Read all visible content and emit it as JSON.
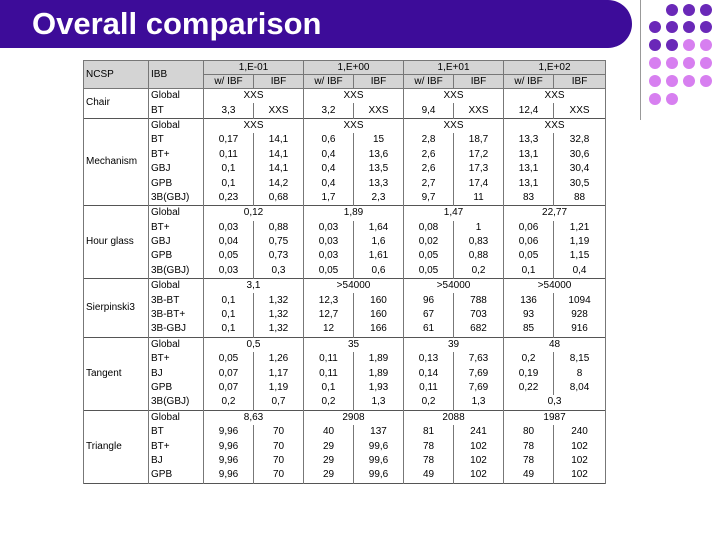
{
  "title": "Overall comparison",
  "table": {
    "ncsp_label": "NCSP",
    "ibb_label": "IBB",
    "groups": [
      "1,E-01",
      "1,E+00",
      "1,E+01",
      "1,E+02"
    ],
    "subheaders": [
      "w/ IBF",
      "IBF",
      "w/ IBF",
      "IBF",
      "w/ IBF",
      "IBF",
      "w/ IBF",
      "IBF"
    ],
    "sections": [
      {
        "name": "Chair",
        "rows": [
          {
            "ibb": "Global",
            "cells": [
              [
                "XXS"
              ],
              [
                "XXS"
              ],
              [
                "XXS"
              ],
              [
                "XXS"
              ]
            ]
          },
          {
            "ibb": "BT",
            "cells": [
              [
                "3,3",
                "XXS"
              ],
              [
                "3,2",
                "XXS"
              ],
              [
                "9,4",
                "XXS"
              ],
              [
                "12,4",
                "XXS"
              ]
            ]
          }
        ]
      },
      {
        "name": "Mechanism",
        "rows": [
          {
            "ibb": "Global",
            "cells": [
              [
                "XXS"
              ],
              [
                "XXS"
              ],
              [
                "XXS"
              ],
              [
                "XXS"
              ]
            ]
          },
          {
            "ibb": "BT",
            "cells": [
              [
                "0,17",
                "14,1"
              ],
              [
                "0,6",
                "15"
              ],
              [
                "2,8",
                "18,7"
              ],
              [
                "13,3",
                "32,8"
              ]
            ]
          },
          {
            "ibb": "BT+",
            "cells": [
              [
                "0,11",
                "14,1"
              ],
              [
                "0,4",
                "13,6"
              ],
              [
                "2,6",
                "17,2"
              ],
              [
                "13,1",
                "30,6"
              ]
            ]
          },
          {
            "ibb": "GBJ",
            "cells": [
              [
                "0,1",
                "14,1"
              ],
              [
                "0,4",
                "13,5"
              ],
              [
                "2,6",
                "17,3"
              ],
              [
                "13,1",
                "30,4"
              ]
            ]
          },
          {
            "ibb": "GPB",
            "cells": [
              [
                "0,1",
                "14,2"
              ],
              [
                "0,4",
                "13,3"
              ],
              [
                "2,7",
                "17,4"
              ],
              [
                "13,1",
                "30,5"
              ]
            ]
          },
          {
            "ibb": "3B(GBJ)",
            "cells": [
              [
                "0,23",
                "0,68"
              ],
              [
                "1,7",
                "2,3"
              ],
              [
                "9,7",
                "11"
              ],
              [
                "83",
                "88"
              ]
            ]
          }
        ]
      },
      {
        "name": "Hour glass",
        "rows": [
          {
            "ibb": "Global",
            "cells": [
              [
                "0,12"
              ],
              [
                "1,89"
              ],
              [
                "1,47"
              ],
              [
                "22,77"
              ]
            ]
          },
          {
            "ibb": "BT+",
            "cells": [
              [
                "0,03",
                "0,88"
              ],
              [
                "0,03",
                "1,64"
              ],
              [
                "0,08",
                "1"
              ],
              [
                "0,06",
                "1,21"
              ]
            ]
          },
          {
            "ibb": "GBJ",
            "cells": [
              [
                "0,04",
                "0,75"
              ],
              [
                "0,03",
                "1,6"
              ],
              [
                "0,02",
                "0,83"
              ],
              [
                "0,06",
                "1,19"
              ]
            ]
          },
          {
            "ibb": "GPB",
            "cells": [
              [
                "0,05",
                "0,73"
              ],
              [
                "0,03",
                "1,61"
              ],
              [
                "0,05",
                "0,88"
              ],
              [
                "0,05",
                "1,15"
              ]
            ]
          },
          {
            "ibb": "3B(GBJ)",
            "cells": [
              [
                "0,03",
                "0,3"
              ],
              [
                "0,05",
                "0,6"
              ],
              [
                "0,05",
                "0,2"
              ],
              [
                "0,1",
                "0,4"
              ]
            ]
          }
        ]
      },
      {
        "name": "Sierpinski3",
        "rows": [
          {
            "ibb": "Global",
            "cells": [
              [
                "3,1"
              ],
              [
                ">54000"
              ],
              [
                ">54000"
              ],
              [
                ">54000"
              ]
            ]
          },
          {
            "ibb": "3B-BT",
            "cells": [
              [
                "0,1",
                "1,32"
              ],
              [
                "12,3",
                "160"
              ],
              [
                "96",
                "788"
              ],
              [
                "136",
                "1094"
              ]
            ]
          },
          {
            "ibb": "3B-BT+",
            "cells": [
              [
                "0,1",
                "1,32"
              ],
              [
                "12,7",
                "160"
              ],
              [
                "67",
                "703"
              ],
              [
                "93",
                "928"
              ]
            ]
          },
          {
            "ibb": "3B-GBJ",
            "cells": [
              [
                "0,1",
                "1,32"
              ],
              [
                "12",
                "166"
              ],
              [
                "61",
                "682"
              ],
              [
                "85",
                "916"
              ]
            ]
          }
        ]
      },
      {
        "name": "Tangent",
        "rows": [
          {
            "ibb": "Global",
            "cells": [
              [
                "0,5"
              ],
              [
                "35"
              ],
              [
                "39"
              ],
              [
                "48"
              ]
            ]
          },
          {
            "ibb": "BT+",
            "cells": [
              [
                "0,05",
                "1,26"
              ],
              [
                "0,11",
                "1,89"
              ],
              [
                "0,13",
                "7,63"
              ],
              [
                "0,2",
                "8,15"
              ]
            ]
          },
          {
            "ibb": "BJ",
            "cells": [
              [
                "0,07",
                "1,17"
              ],
              [
                "0,11",
                "1,89"
              ],
              [
                "0,14",
                "7,69"
              ],
              [
                "0,19",
                "8"
              ]
            ]
          },
          {
            "ibb": "GPB",
            "cells": [
              [
                "0,07",
                "1,19"
              ],
              [
                "0,1",
                "1,93"
              ],
              [
                "0,11",
                "7,69"
              ],
              [
                "0,22",
                "8,04"
              ]
            ]
          },
          {
            "ibb": "3B(GBJ)",
            "cells": [
              [
                "0,2",
                "0,7"
              ],
              [
                "0,2",
                "1,3"
              ],
              [
                "0,2",
                "1,3"
              ],
              [
                "0,3"
              ]
            ]
          }
        ]
      },
      {
        "name": "Triangle",
        "rows": [
          {
            "ibb": "Global",
            "cells": [
              [
                "8,63"
              ],
              [
                "2908"
              ],
              [
                "2088"
              ],
              [
                "1987"
              ]
            ]
          },
          {
            "ibb": "BT",
            "cells": [
              [
                "9,96",
                "70"
              ],
              [
                "40",
                "137"
              ],
              [
                "81",
                "241"
              ],
              [
                "80",
                "240"
              ]
            ]
          },
          {
            "ibb": "BT+",
            "cells": [
              [
                "9,96",
                "70"
              ],
              [
                "29",
                "99,6"
              ],
              [
                "78",
                "102"
              ],
              [
                "78",
                "102"
              ]
            ]
          },
          {
            "ibb": "BJ",
            "cells": [
              [
                "9,96",
                "70"
              ],
              [
                "29",
                "99,6"
              ],
              [
                "78",
                "102"
              ],
              [
                "78",
                "102"
              ]
            ]
          },
          {
            "ibb": "GPB",
            "cells": [
              [
                "9,96",
                "70"
              ],
              [
                "29",
                "99,6"
              ],
              [
                "49",
                "102"
              ],
              [
                "49",
                "102"
              ]
            ]
          }
        ]
      }
    ]
  }
}
